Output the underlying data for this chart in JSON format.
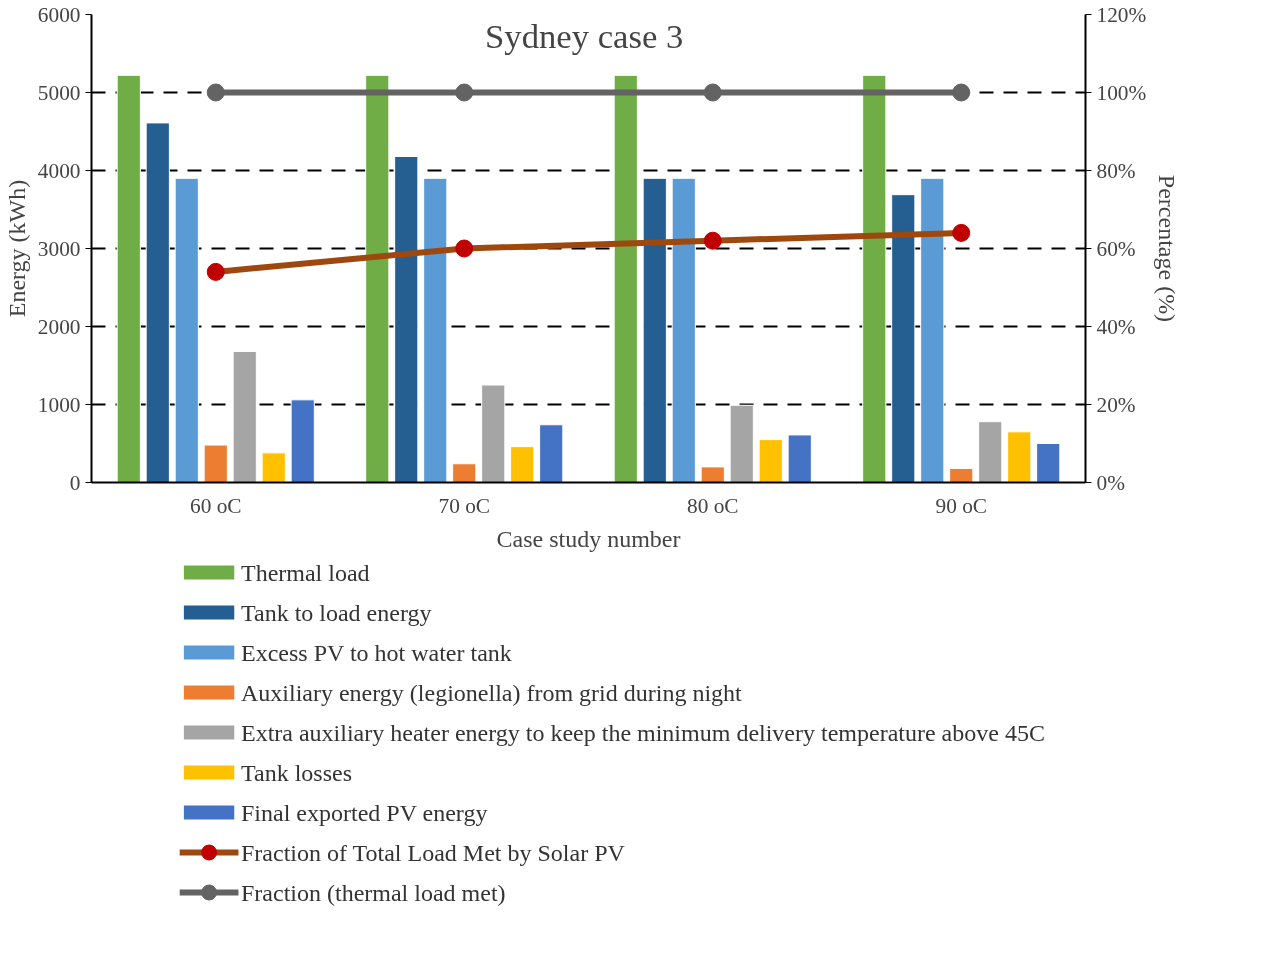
{
  "chart_data": {
    "type": "bar",
    "title": "Sydney  case 3",
    "xlabel": "Case study number",
    "ylabel": "Energy (kWh)",
    "y2label": "Percentage (%)",
    "categories": [
      "60 oC",
      "70 oC",
      "80 oC",
      "90 oC"
    ],
    "series": [
      {
        "name": "Thermal load",
        "color": "#70ad47",
        "values": [
          5220,
          5220,
          5220,
          5220
        ]
      },
      {
        "name": "Tank to load energy",
        "color": "#255e91",
        "values": [
          4610,
          4180,
          3900,
          3690
        ]
      },
      {
        "name": "Excess PV to hot water tank",
        "color": "#5b9bd5",
        "values": [
          3900,
          3900,
          3900,
          3900
        ]
      },
      {
        "name": "Auxiliary energy (legionella) from grid during night",
        "color": "#ed7d31",
        "values": [
          480,
          240,
          200,
          180
        ]
      },
      {
        "name": "Extra auxiliary heater energy to keep the minimum delivery temperature above 45C",
        "color": "#a5a5a5",
        "values": [
          1680,
          1250,
          990,
          780
        ]
      },
      {
        "name": "Tank losses",
        "color": "#ffc000",
        "values": [
          380,
          460,
          550,
          650
        ]
      },
      {
        "name": "Final exported PV energy",
        "color": "#4472c4",
        "values": [
          1060,
          740,
          610,
          500
        ]
      },
      {
        "name": "Fraction of Total Load Met by Solar PV",
        "type": "line",
        "axis": "y2",
        "color": "#9e480e",
        "colors": [
          "#c00000",
          "#c00000",
          "#c00000",
          "#c00000"
        ],
        "values": [
          54,
          60,
          62,
          64
        ]
      },
      {
        "name": "Fraction (thermal load met)",
        "type": "line",
        "axis": "y2",
        "color": "#636363",
        "values": [
          100,
          100,
          100,
          100
        ]
      }
    ],
    "ylim": [
      0,
      6000
    ],
    "yticks": [
      0,
      1000,
      2000,
      3000,
      4000,
      5000,
      6000
    ],
    "y2lim": [
      0,
      120
    ],
    "y2ticks": [
      {
        "value": 0,
        "label": "0%"
      },
      {
        "value": 20,
        "label": "20%"
      },
      {
        "value": 40,
        "label": "40%"
      },
      {
        "value": 60,
        "label": "60%"
      },
      {
        "value": 80,
        "label": "80%"
      },
      {
        "value": 100,
        "label": "100%"
      },
      {
        "value": 120,
        "label": "120%"
      }
    ],
    "grid": "y",
    "legend": "bottom",
    "marker": "circle",
    "line_style": "solid"
  }
}
